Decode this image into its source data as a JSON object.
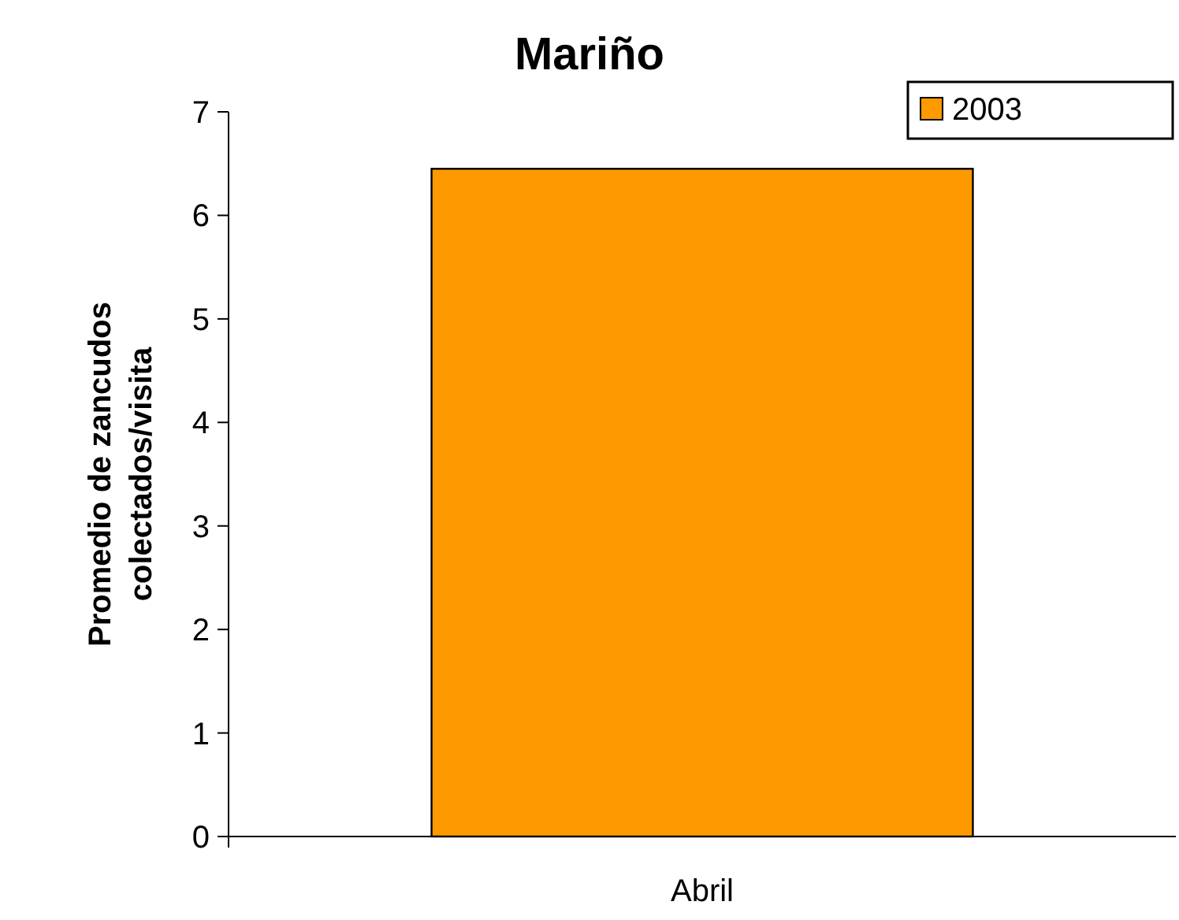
{
  "chart_data": {
    "type": "bar",
    "title": "Mariño",
    "ylabel": "Promedio de zancudos\ncolectados/visita",
    "categories": [
      "Abril"
    ],
    "series": [
      {
        "name": "2003",
        "color": "#ff9900",
        "values": [
          6.45
        ]
      }
    ],
    "ylim": [
      0,
      7
    ],
    "yticks": [
      0,
      1,
      2,
      3,
      4,
      5,
      6,
      7
    ],
    "grid": false,
    "legend": "top right"
  }
}
